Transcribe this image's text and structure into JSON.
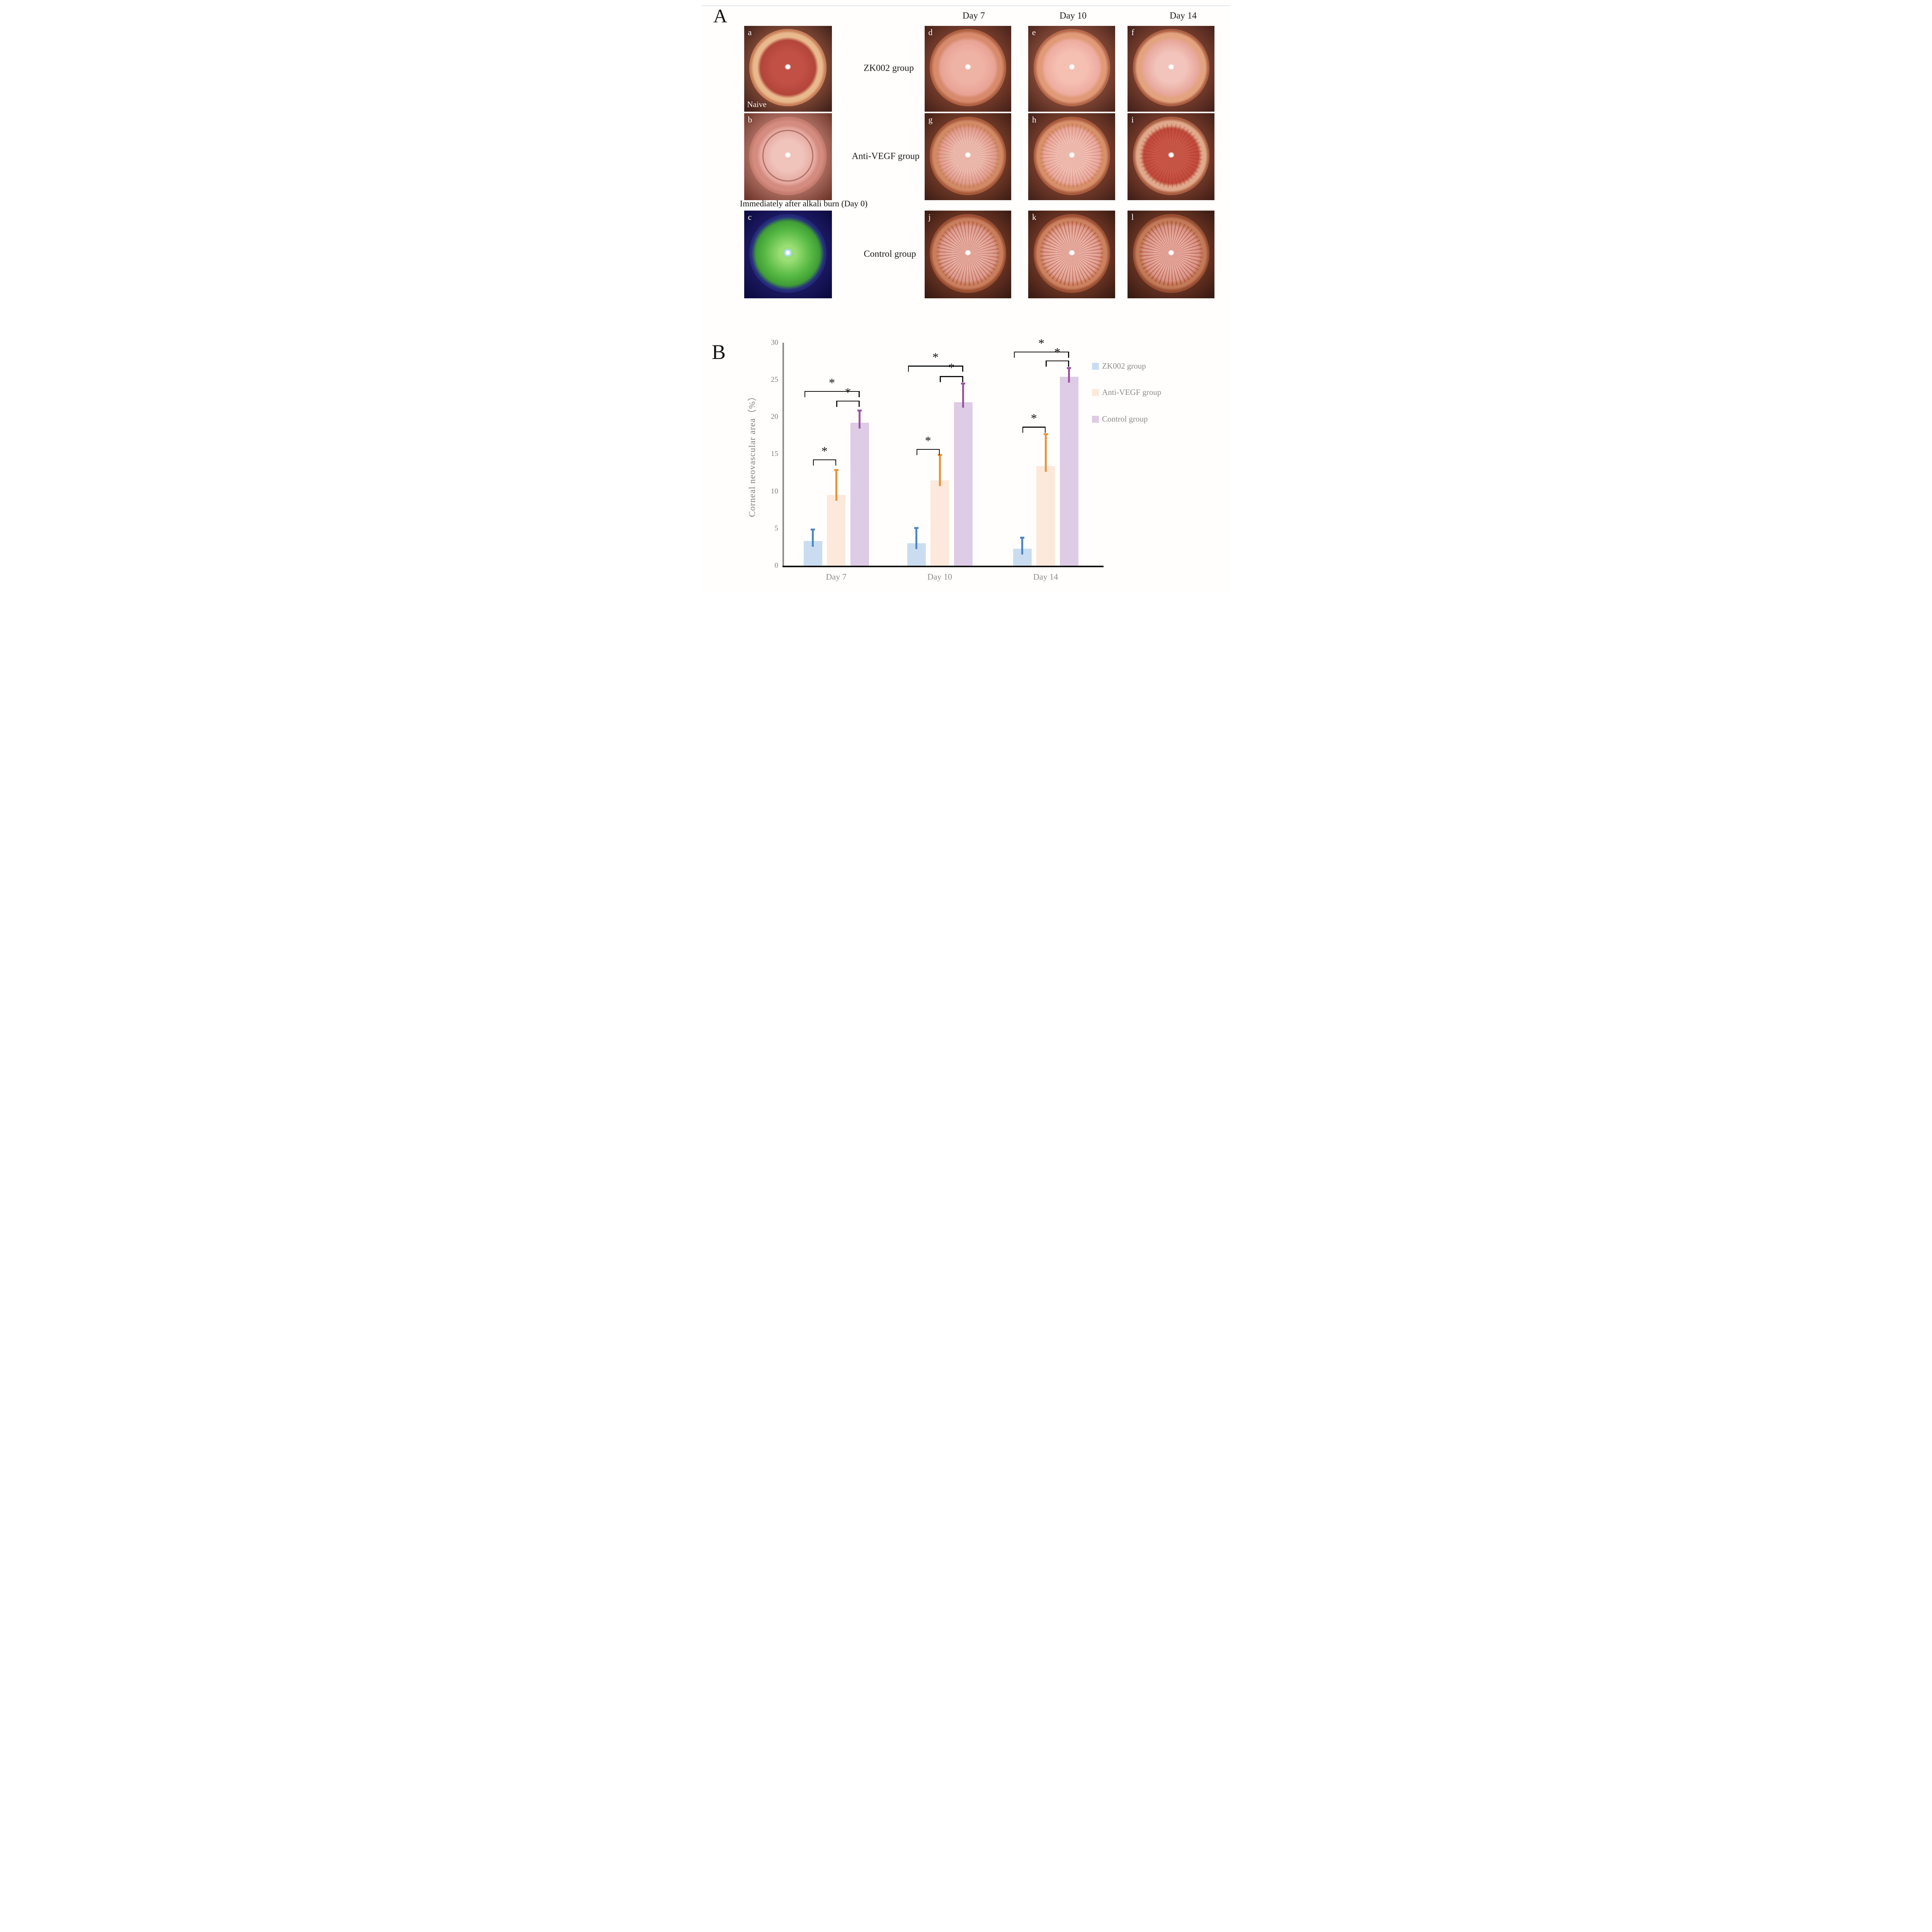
{
  "figure": {
    "panel_a_label": "A",
    "panel_b_label": "B",
    "day_headers": [
      "Day 7",
      "Day 10",
      "Day 14"
    ],
    "group_labels": [
      "ZK002 group",
      "Anti-VEGF group",
      "Control group"
    ],
    "day0_caption": "Immediately after alkali burn (Day 0)",
    "naive_label": "Naive",
    "tiles": [
      {
        "label": "a",
        "variant": "naive",
        "col": "a",
        "row": 1,
        "sublabel": "Naive"
      },
      {
        "label": "b",
        "variant": "burn0",
        "col": "a",
        "row": 2
      },
      {
        "label": "c",
        "variant": "fluor",
        "col": "a",
        "row": 3
      },
      {
        "label": "d",
        "variant": "zk7",
        "col": "d",
        "row": 1
      },
      {
        "label": "e",
        "variant": "zk10",
        "col": "e",
        "row": 1
      },
      {
        "label": "f",
        "variant": "zk14",
        "col": "f",
        "row": 1
      },
      {
        "label": "g",
        "variant": "av7",
        "col": "d",
        "row": 2
      },
      {
        "label": "h",
        "variant": "av10",
        "col": "e",
        "row": 2
      },
      {
        "label": "i",
        "variant": "av14",
        "col": "f",
        "row": 2
      },
      {
        "label": "j",
        "variant": "ct7",
        "col": "d",
        "row": 3
      },
      {
        "label": "k",
        "variant": "ct10",
        "col": "e",
        "row": 3
      },
      {
        "label": "l",
        "variant": "ct14",
        "col": "f",
        "row": 3
      }
    ]
  },
  "chart_data": {
    "type": "bar",
    "title": "",
    "xlabel": "",
    "ylabel": "Corneal neovascular area（%）",
    "ylim": [
      0,
      30
    ],
    "yticks": [
      0,
      5,
      10,
      15,
      20,
      25,
      30
    ],
    "grid": false,
    "legend_position": "right",
    "categories": [
      "Day 7",
      "Day 10",
      "Day 14"
    ],
    "series": [
      {
        "name": "ZK002 group",
        "fill": "#caddf0",
        "accent": "#4e87c6",
        "values": [
          3.3,
          3.0,
          2.3
        ],
        "error_tops": [
          5.0,
          5.2,
          3.9
        ]
      },
      {
        "name": "Anti-VEGF group",
        "fill": "#fce9db",
        "accent": "#ec9138",
        "values": [
          9.5,
          11.5,
          13.4
        ],
        "error_tops": [
          13.0,
          15.0,
          17.8
        ]
      },
      {
        "name": "Control group",
        "fill": "#decbe6",
        "accent": "#9a56a0",
        "values": [
          19.2,
          22.0,
          25.4
        ],
        "error_tops": [
          21.0,
          24.6,
          26.7
        ]
      }
    ],
    "significance_brackets": [
      {
        "category": 0,
        "from": 0,
        "to": 1,
        "level": 14.3,
        "label": "*"
      },
      {
        "category": 0,
        "from": 1,
        "to": 2,
        "level": 22.2,
        "label": "*"
      },
      {
        "category": 0,
        "from": 0,
        "to": 2,
        "level": 23.5,
        "label": "*"
      },
      {
        "category": 1,
        "from": 0,
        "to": 1,
        "level": 15.7,
        "label": "*"
      },
      {
        "category": 1,
        "from": 1,
        "to": 2,
        "level": 25.5,
        "label": "*"
      },
      {
        "category": 1,
        "from": 0,
        "to": 2,
        "level": 26.9,
        "label": "*"
      },
      {
        "category": 2,
        "from": 0,
        "to": 1,
        "level": 18.7,
        "label": "*"
      },
      {
        "category": 2,
        "from": 1,
        "to": 2,
        "level": 27.6,
        "label": "*"
      },
      {
        "category": 2,
        "from": 0,
        "to": 2,
        "level": 28.8,
        "label": "*"
      }
    ],
    "axis_colors": {
      "tick_text": "#7d7d7d",
      "axis_line": "#8c8c8c",
      "baseline": "#0d0d0d"
    }
  }
}
